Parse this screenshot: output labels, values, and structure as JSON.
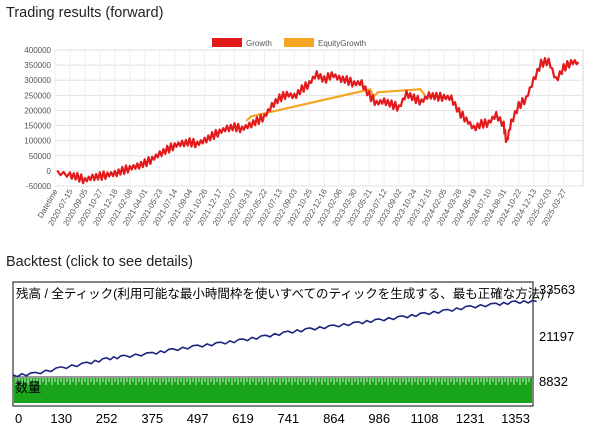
{
  "sections": {
    "forward_title": "Trading results (forward)",
    "backtest_title": "Backtest (click to see details)"
  },
  "chart_data": [
    {
      "type": "line",
      "title": "Trading results (forward)",
      "legend": {
        "position": "top-center",
        "entries": [
          "Growth",
          "EquityGrowth"
        ]
      },
      "colors": {
        "Growth": "#e31a1c",
        "EquityGrowth": "#f5a623"
      },
      "grid": true,
      "ylim": [
        -50000,
        400000
      ],
      "yticks": [
        -50000,
        0,
        50000,
        100000,
        150000,
        200000,
        250000,
        300000,
        350000,
        400000
      ],
      "ytick_labels": [
        "-50000",
        "0",
        "50000",
        "100000",
        "150000",
        "200000",
        "250000",
        "300000",
        "350000",
        "400000"
      ],
      "xtick_labels": [
        "Datetime",
        "2020-07-15",
        "2020-09-05",
        "2020-10-27",
        "2020-12-18",
        "2021-02-08",
        "2021-04-01",
        "2021-05-23",
        "2021-07-14",
        "2021-09-04",
        "2021-10-26",
        "2021-12-17",
        "2022-02-07",
        "2022-03-31",
        "2022-05-22",
        "2022-07-13",
        "2022-09-03",
        "2022-10-25",
        "2022-12-16",
        "2023-02-06",
        "2023-03-30",
        "2023-05-21",
        "2023-07-12",
        "2023-09-02",
        "2023-10-24",
        "2023-12-15",
        "2024-02-05",
        "2024-03-28",
        "2024-05-19",
        "2024-07-10",
        "2024-08-31",
        "2024-10-22",
        "2024-12-13",
        "2025-02-03",
        "2025-03-27"
      ],
      "series": [
        {
          "name": "Growth",
          "x": [
            "2020-06-01",
            "2020-07-15",
            "2020-08-10",
            "2020-09-05",
            "2020-10-01",
            "2020-10-27",
            "2020-11-22",
            "2020-12-18",
            "2021-01-13",
            "2021-02-08",
            "2021-03-06",
            "2021-04-01",
            "2021-04-27",
            "2021-05-23",
            "2021-06-18",
            "2021-07-14",
            "2021-08-09",
            "2021-09-04",
            "2021-09-30",
            "2021-10-26",
            "2021-11-21",
            "2021-12-17",
            "2022-01-12",
            "2022-02-07",
            "2022-03-05",
            "2022-03-31",
            "2022-04-26",
            "2022-05-22",
            "2022-06-17",
            "2022-07-13",
            "2022-08-08",
            "2022-09-03",
            "2022-09-29",
            "2022-10-25",
            "2022-11-20",
            "2022-12-16",
            "2023-01-11",
            "2023-02-06",
            "2023-03-04",
            "2023-03-30",
            "2023-04-25",
            "2023-05-21",
            "2023-06-16",
            "2023-07-12",
            "2023-08-07",
            "2023-09-02",
            "2023-09-28",
            "2023-10-24",
            "2023-11-19",
            "2023-12-15",
            "2024-01-10",
            "2024-02-05",
            "2024-03-02",
            "2024-03-28",
            "2024-04-23",
            "2024-05-19",
            "2024-06-14",
            "2024-07-10",
            "2024-08-05",
            "2024-08-31",
            "2024-09-10",
            "2024-09-26",
            "2024-10-22",
            "2024-11-17",
            "2024-12-13",
            "2025-01-08",
            "2025-02-03",
            "2025-03-01",
            "2025-03-27",
            "2025-04-22",
            "2025-05-18"
          ],
          "values": [
            -5000,
            -15000,
            -20000,
            -30000,
            -22000,
            -18000,
            -12000,
            -10000,
            0,
            10000,
            15000,
            25000,
            40000,
            55000,
            70000,
            85000,
            90000,
            95000,
            90000,
            100000,
            115000,
            130000,
            140000,
            145000,
            140000,
            150000,
            165000,
            180000,
            215000,
            240000,
            255000,
            245000,
            270000,
            290000,
            320000,
            300000,
            320000,
            305000,
            300000,
            290000,
            290000,
            250000,
            225000,
            230000,
            220000,
            210000,
            255000,
            240000,
            230000,
            250000,
            245000,
            245000,
            240000,
            195000,
            170000,
            140000,
            155000,
            160000,
            185000,
            150000,
            95000,
            160000,
            215000,
            240000,
            300000,
            355000,
            365000,
            300000,
            340000,
            360000,
            360000
          ]
        },
        {
          "name": "EquityGrowth",
          "x": [
            "2022-03-20",
            "2022-04-05",
            "2023-05-25",
            "2023-06-05",
            "2023-06-20",
            "2023-11-15",
            "2023-12-01"
          ],
          "values": [
            165000,
            180000,
            270000,
            245000,
            260000,
            270000,
            250000
          ]
        }
      ]
    },
    {
      "type": "line",
      "title": "残高 / 全ティック(利用可能な最小時間枠を使いすべてのティックを生成する、最も正確な方法) /",
      "colors": {
        "line": "#1a237e",
        "volume": "#19a519"
      },
      "ylim": [
        8832,
        33563
      ],
      "ytick_labels": [
        "33563",
        "21197",
        "8832"
      ],
      "xlim": [
        0,
        1400
      ],
      "xtick_labels": [
        "0",
        "130",
        "252",
        "375",
        "497",
        "619",
        "741",
        "864",
        "986",
        "1108",
        "1231",
        "1353"
      ],
      "volume_label": "数量",
      "series": [
        {
          "name": "",
          "x": [
            0,
            60,
            130,
            200,
            252,
            300,
            375,
            430,
            497,
            560,
            619,
            680,
            741,
            800,
            864,
            930,
            986,
            1050,
            1108,
            1170,
            1231,
            1300,
            1353,
            1410
          ],
          "values": [
            8832,
            9500,
            11000,
            12300,
            13500,
            14200,
            15000,
            16000,
            17000,
            17800,
            18700,
            19700,
            20800,
            21700,
            22500,
            23400,
            24200,
            25000,
            25900,
            26800,
            27800,
            28500,
            29100,
            29300
          ]
        }
      ]
    }
  ]
}
